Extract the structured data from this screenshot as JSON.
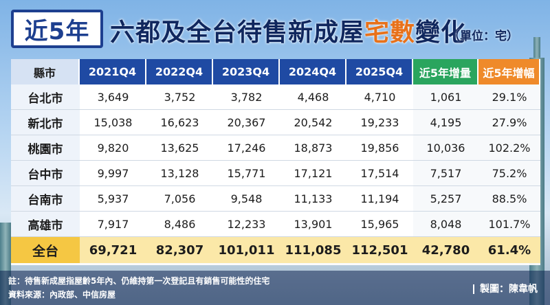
{
  "title": {
    "tag": "近5年",
    "main_prefix": "六都及全台待售新成屋",
    "main_highlight": "宅數",
    "main_suffix": "變化",
    "unit": "（單位：宅）"
  },
  "table": {
    "headers": [
      "縣市",
      "2021Q4",
      "2022Q4",
      "2023Q4",
      "2024Q4",
      "2025Q4",
      "近5年增量",
      "近5年增幅"
    ],
    "rows": [
      [
        "台北市",
        "3,649",
        "3,752",
        "3,782",
        "4,468",
        "4,710",
        "1,061",
        "29.1%"
      ],
      [
        "新北市",
        "15,038",
        "16,623",
        "20,367",
        "20,542",
        "19,233",
        "4,195",
        "27.9%"
      ],
      [
        "桃園市",
        "9,820",
        "13,625",
        "17,246",
        "18,873",
        "19,856",
        "10,036",
        "102.2%"
      ],
      [
        "台中市",
        "9,997",
        "13,128",
        "15,771",
        "17,121",
        "17,514",
        "7,517",
        "75.2%"
      ],
      [
        "台南市",
        "5,937",
        "7,056",
        "9,548",
        "11,133",
        "11,194",
        "5,257",
        "88.5%"
      ],
      [
        "高雄市",
        "7,917",
        "8,486",
        "12,233",
        "13,901",
        "15,965",
        "8,048",
        "101.7%"
      ]
    ],
    "total": [
      "全台",
      "69,721",
      "82,307",
      "101,011",
      "111,085",
      "112,501",
      "42,780",
      "61.4%"
    ]
  },
  "footer": {
    "note": "註：待售新成屋指屋齡5年內、仍維持第一次登記且有銷售可能性的住宅",
    "source": "資料來源：內政部、中信房屋",
    "credit": "製圖：陳韋帆"
  },
  "colors": {
    "header_blue": "#1f4aa3",
    "increment_green": "#2aa55e",
    "growth_orange": "#ef8a2a",
    "total_yellow": "#f5c743",
    "highlight_orange": "#e8711a"
  }
}
